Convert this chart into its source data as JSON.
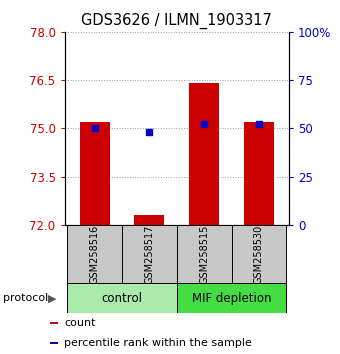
{
  "title": "GDS3626 / ILMN_1903317",
  "samples": [
    "GSM258516",
    "GSM258517",
    "GSM258515",
    "GSM258530"
  ],
  "bar_tops": [
    75.2,
    72.3,
    76.4,
    75.2
  ],
  "bar_bottom": 72.0,
  "percentile_values": [
    50,
    48,
    52,
    52
  ],
  "ylim_left": [
    72,
    78
  ],
  "ylim_right": [
    0,
    100
  ],
  "yticks_left": [
    72,
    73.5,
    75,
    76.5,
    78
  ],
  "yticks_right": [
    0,
    25,
    50,
    75,
    100
  ],
  "ytick_labels_right": [
    "0",
    "25",
    "50",
    "75",
    "100%"
  ],
  "groups": [
    {
      "label": "control",
      "indices": [
        0,
        1
      ],
      "color": "#aaeaaa"
    },
    {
      "label": "MIF depletion",
      "indices": [
        2,
        3
      ],
      "color": "#44dd44"
    }
  ],
  "bar_color": "#cc0000",
  "dot_color": "#0000cc",
  "bar_width": 0.55,
  "sample_box_color": "#c8c8c8",
  "background_color": "#ffffff",
  "protocol_label": "protocol",
  "legend_items": [
    {
      "color": "#cc0000",
      "label": "count"
    },
    {
      "color": "#0000cc",
      "label": "percentile rank within the sample"
    }
  ]
}
